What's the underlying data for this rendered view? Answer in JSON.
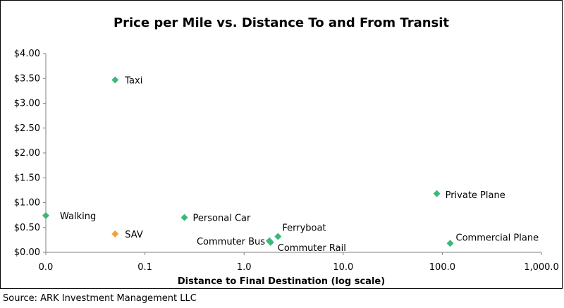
{
  "chart_data": {
    "type": "scatter",
    "title": "Price per Mile vs. Distance To and From Transit",
    "xlabel": "Distance to Final Destination (log scale)",
    "ylabel": "",
    "x_scale": "log",
    "xlim": [
      0.01,
      1000
    ],
    "ylim": [
      0,
      4
    ],
    "x_tick_labels": [
      "0.0",
      "0.1",
      "1.0",
      "10.0",
      "100.0",
      "1,000.0"
    ],
    "y_tick_labels": [
      "$0.00",
      "$0.50",
      "$1.00",
      "$1.50",
      "$2.00",
      "$2.50",
      "$3.00",
      "$3.50",
      "$4.00"
    ],
    "grid": false,
    "colors": {
      "default": "#3cb878",
      "highlight": "#f5a233"
    },
    "points": [
      {
        "label": "Walking",
        "x": 0.01,
        "y": 0.74,
        "color": "#3cb878"
      },
      {
        "label": "Taxi",
        "x": 0.05,
        "y": 3.47,
        "color": "#3cb878"
      },
      {
        "label": "SAV",
        "x": 0.05,
        "y": 0.37,
        "color": "#f5a233"
      },
      {
        "label": "Personal Car",
        "x": 0.25,
        "y": 0.7,
        "color": "#3cb878"
      },
      {
        "label": "Commuter Bus",
        "x": 1.8,
        "y": 0.23,
        "color": "#3cb878"
      },
      {
        "label": "Commuter Rail",
        "x": 1.85,
        "y": 0.2,
        "color": "#3cb878"
      },
      {
        "label": "Ferryboat",
        "x": 2.2,
        "y": 0.32,
        "color": "#3cb878"
      },
      {
        "label": "Private Plane",
        "x": 88,
        "y": 1.18,
        "color": "#3cb878"
      },
      {
        "label": "Commercial Plane",
        "x": 120,
        "y": 0.18,
        "color": "#3cb878"
      }
    ]
  },
  "source": "Source: ARK Investment Management LLC"
}
